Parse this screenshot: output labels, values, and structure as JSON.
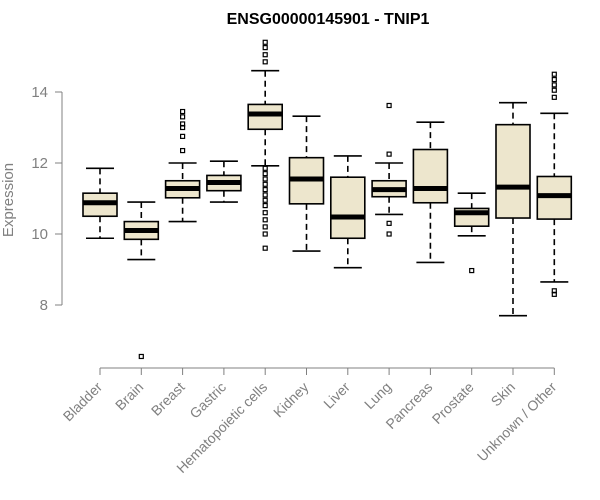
{
  "chart_data": {
    "type": "boxplot",
    "title": "ENSG00000145901 - TNIP1",
    "xlabel": "",
    "ylabel": "Expression",
    "yticks": [
      8,
      10,
      12,
      14
    ],
    "ylim": [
      6.2,
      15.6
    ],
    "box_fill": "#ede6cd",
    "categories": [
      "Bladder",
      "Brain",
      "Breast",
      "Gastric",
      "Hematopoietic cells",
      "Kidney",
      "Liver",
      "Lung",
      "Pancreas",
      "Prostate",
      "Skin",
      "Unknown / Other"
    ],
    "boxes": [
      {
        "name": "Bladder",
        "whisker_low": 9.88,
        "q1": 10.5,
        "median": 10.88,
        "q3": 11.15,
        "whisker_high": 11.85,
        "outliers": []
      },
      {
        "name": "Brain",
        "whisker_low": 9.28,
        "q1": 9.85,
        "median": 10.1,
        "q3": 10.35,
        "whisker_high": 10.9,
        "outliers": [
          6.55
        ]
      },
      {
        "name": "Breast",
        "whisker_low": 10.35,
        "q1": 11.02,
        "median": 11.28,
        "q3": 11.5,
        "whisker_high": 12.0,
        "outliers": [
          12.35,
          12.75,
          13.0,
          13.1,
          13.3,
          13.45
        ]
      },
      {
        "name": "Gastric",
        "whisker_low": 10.9,
        "q1": 11.22,
        "median": 11.45,
        "q3": 11.65,
        "whisker_high": 12.05,
        "outliers": []
      },
      {
        "name": "Hematopoietic cells",
        "whisker_low": 11.92,
        "q1": 12.95,
        "median": 13.38,
        "q3": 13.65,
        "whisker_high": 14.6,
        "outliers": [
          9.6,
          10.0,
          10.2,
          10.4,
          10.6,
          10.8,
          10.95,
          11.1,
          11.25,
          11.4,
          11.55,
          11.7,
          11.85,
          14.85,
          15.05,
          15.25,
          15.4
        ]
      },
      {
        "name": "Kidney",
        "whisker_low": 9.52,
        "q1": 10.85,
        "median": 11.55,
        "q3": 12.15,
        "whisker_high": 13.32,
        "outliers": []
      },
      {
        "name": "Liver",
        "whisker_low": 9.05,
        "q1": 9.88,
        "median": 10.48,
        "q3": 11.6,
        "whisker_high": 12.2,
        "outliers": []
      },
      {
        "name": "Lung",
        "whisker_low": 10.55,
        "q1": 11.05,
        "median": 11.25,
        "q3": 11.5,
        "whisker_high": 12.0,
        "outliers": [
          10.0,
          10.3,
          12.25,
          13.62
        ]
      },
      {
        "name": "Pancreas",
        "whisker_low": 9.2,
        "q1": 10.88,
        "median": 11.28,
        "q3": 12.38,
        "whisker_high": 13.15,
        "outliers": []
      },
      {
        "name": "Prostate",
        "whisker_low": 9.95,
        "q1": 10.22,
        "median": 10.6,
        "q3": 10.72,
        "whisker_high": 11.15,
        "outliers": [
          8.97
        ]
      },
      {
        "name": "Skin",
        "whisker_low": 7.7,
        "q1": 10.45,
        "median": 11.32,
        "q3": 13.08,
        "whisker_high": 13.7,
        "outliers": []
      },
      {
        "name": "Unknown / Other",
        "whisker_low": 8.65,
        "q1": 10.42,
        "median": 11.08,
        "q3": 11.62,
        "whisker_high": 13.4,
        "outliers": [
          8.3,
          8.4,
          13.85,
          14.05,
          14.2,
          14.35,
          14.5
        ]
      }
    ]
  }
}
